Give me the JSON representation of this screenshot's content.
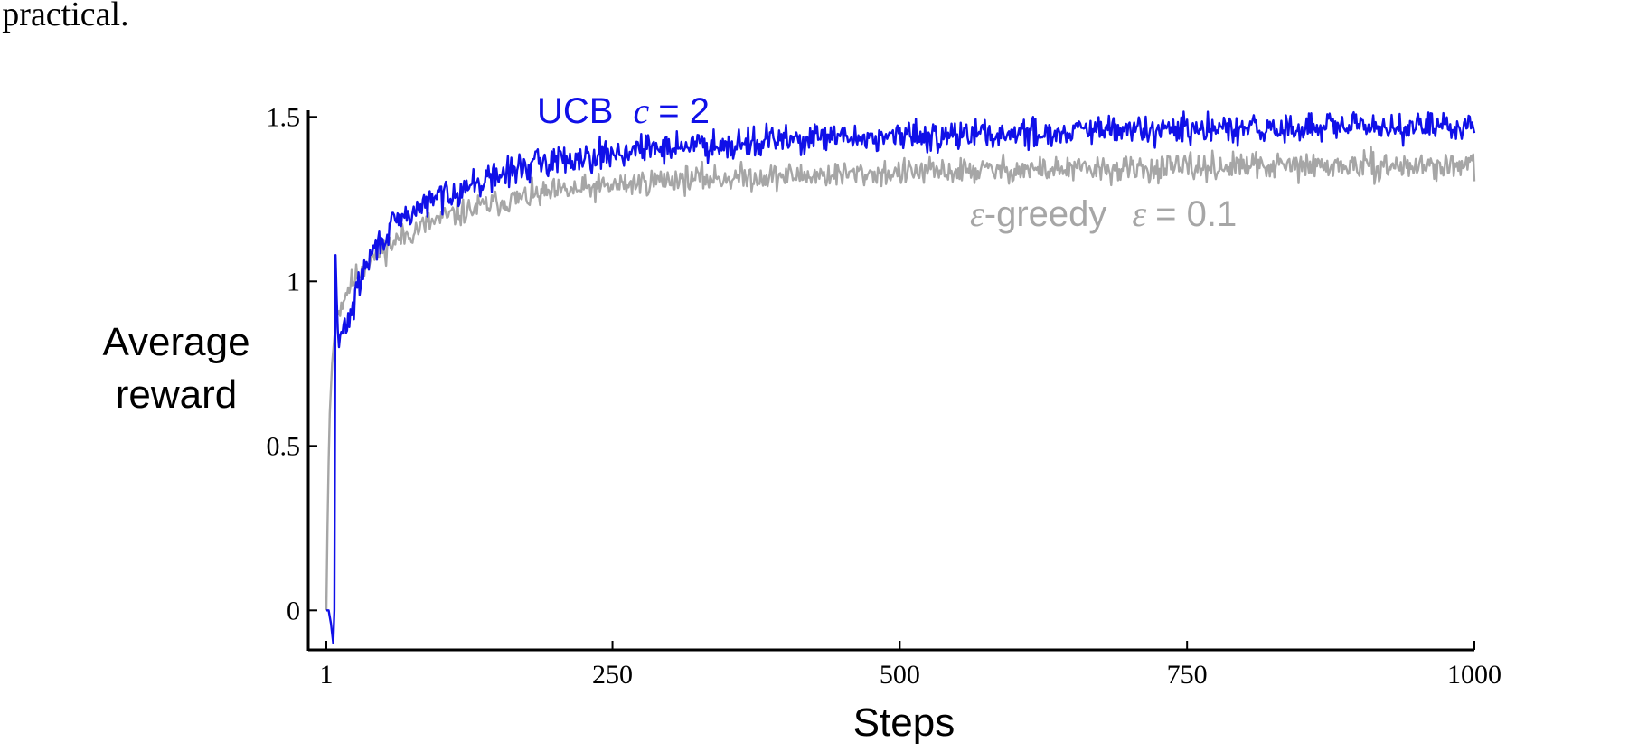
{
  "page_text": {
    "fragment": "s practical."
  },
  "chart_data": {
    "type": "line",
    "title": "",
    "xlabel": "Steps",
    "ylabel_lines": [
      "Average",
      "reward"
    ],
    "xlim": [
      1,
      1000
    ],
    "ylim": [
      -0.12,
      1.52
    ],
    "x_ticks": [
      1,
      250,
      500,
      750,
      1000
    ],
    "x_tick_labels": [
      "1",
      "250",
      "500",
      "750",
      "1000"
    ],
    "y_ticks": [
      0,
      0.5,
      1,
      1.5
    ],
    "y_tick_labels": [
      "0",
      "0.5",
      "1",
      "1.5"
    ],
    "grid": false,
    "colors": {
      "ucb": "#1010e8",
      "egreedy": "#a6a6a6"
    },
    "series": [
      {
        "name": "UCB c = 2",
        "label_prefix": "UCB",
        "label_symbol": "c",
        "label_suffix": "= 2",
        "x": [
          1,
          3,
          5,
          7,
          8,
          9,
          10,
          11,
          12,
          13,
          15,
          20,
          25,
          30,
          40,
          50,
          60,
          80,
          100,
          125,
          150,
          175,
          200,
          250,
          300,
          400,
          500,
          600,
          700,
          800,
          900,
          1000
        ],
        "values": [
          0.0,
          0.0,
          -0.04,
          -0.1,
          0.0,
          1.08,
          0.95,
          0.85,
          0.8,
          0.82,
          0.85,
          0.88,
          0.93,
          1.0,
          1.08,
          1.13,
          1.17,
          1.22,
          1.26,
          1.29,
          1.32,
          1.35,
          1.37,
          1.39,
          1.41,
          1.43,
          1.44,
          1.45,
          1.46,
          1.46,
          1.47,
          1.47
        ],
        "noise": 0.028
      },
      {
        "name": "ε-greedy ε = 0.1",
        "label_symbol": "ε",
        "label_middle": "-greedy",
        "label_symbol2": "ε",
        "label_suffix": "= 0.1",
        "x": [
          1,
          2,
          3,
          4,
          6,
          8,
          10,
          15,
          20,
          30,
          40,
          60,
          80,
          100,
          150,
          200,
          250,
          300,
          400,
          500,
          600,
          700,
          800,
          900,
          1000
        ],
        "values": [
          0.0,
          0.25,
          0.45,
          0.6,
          0.75,
          0.83,
          0.89,
          0.94,
          0.98,
          1.03,
          1.07,
          1.12,
          1.16,
          1.19,
          1.24,
          1.27,
          1.29,
          1.31,
          1.32,
          1.33,
          1.34,
          1.34,
          1.35,
          1.35,
          1.35
        ],
        "noise": 0.025
      }
    ]
  }
}
